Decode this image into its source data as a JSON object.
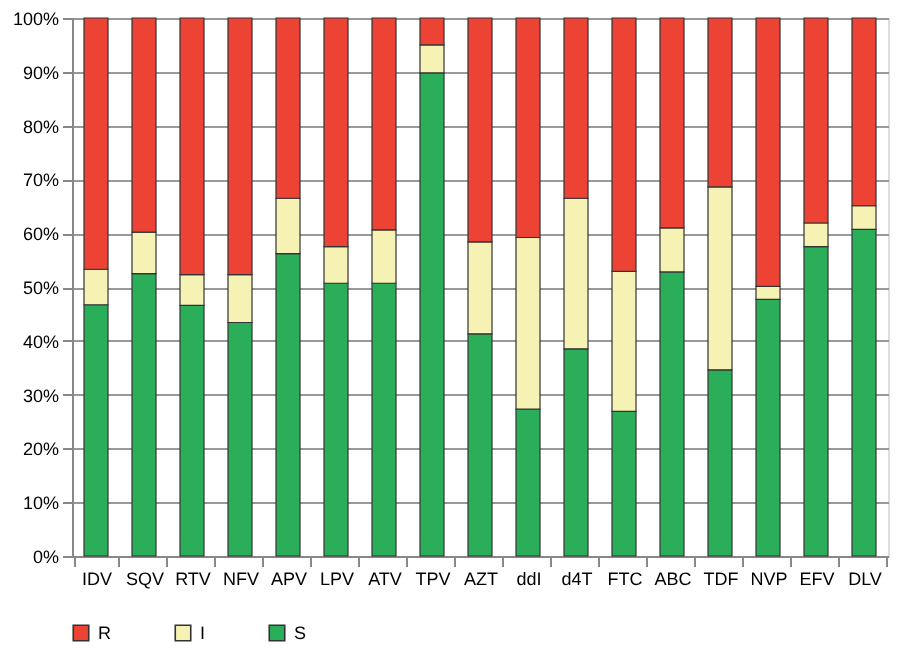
{
  "chart_data": {
    "type": "bar",
    "stacked": true,
    "categories": [
      "IDV",
      "SQV",
      "RTV",
      "NFV",
      "APV",
      "LPV",
      "ATV",
      "TPV",
      "AZT",
      "ddI",
      "d4T",
      "FTC",
      "ABC",
      "TDF",
      "NVP",
      "EFV",
      "DLV"
    ],
    "series": [
      {
        "name": "S",
        "color": "#2bae5a",
        "values": [
          46.7,
          52.5,
          46.6,
          43.4,
          56.2,
          50.7,
          50.7,
          89.8,
          41.3,
          27.3,
          38.5,
          26.9,
          52.8,
          34.6,
          47.7,
          57.5,
          60.7
        ]
      },
      {
        "name": "I",
        "color": "#f6f2b4",
        "values": [
          6.6,
          7.7,
          5.7,
          8.9,
          10.3,
          6.8,
          9.9,
          5.2,
          17.1,
          31.9,
          28.0,
          26.0,
          8.2,
          34.0,
          2.4,
          4.4,
          4.4
        ]
      },
      {
        "name": "R",
        "color": "#ec4334",
        "values": [
          46.7,
          39.8,
          47.7,
          47.7,
          33.5,
          42.5,
          39.4,
          5.0,
          41.6,
          40.8,
          33.5,
          47.1,
          39.0,
          31.4,
          49.9,
          38.1,
          34.9
        ]
      }
    ],
    "ylim": [
      0,
      100
    ],
    "yticks": [
      {
        "value": 0,
        "label": "0%"
      },
      {
        "value": 10,
        "label": "10%"
      },
      {
        "value": 20,
        "label": "20%"
      },
      {
        "value": 30,
        "label": "30%"
      },
      {
        "value": 40,
        "label": "40%"
      },
      {
        "value": 50,
        "label": "50%"
      },
      {
        "value": 60,
        "label": "60%"
      },
      {
        "value": 70,
        "label": "70%"
      },
      {
        "value": 80,
        "label": "80%"
      },
      {
        "value": 90,
        "label": "90%"
      },
      {
        "value": 100,
        "label": "100%"
      }
    ],
    "grid": "y",
    "legend": "bottom"
  }
}
